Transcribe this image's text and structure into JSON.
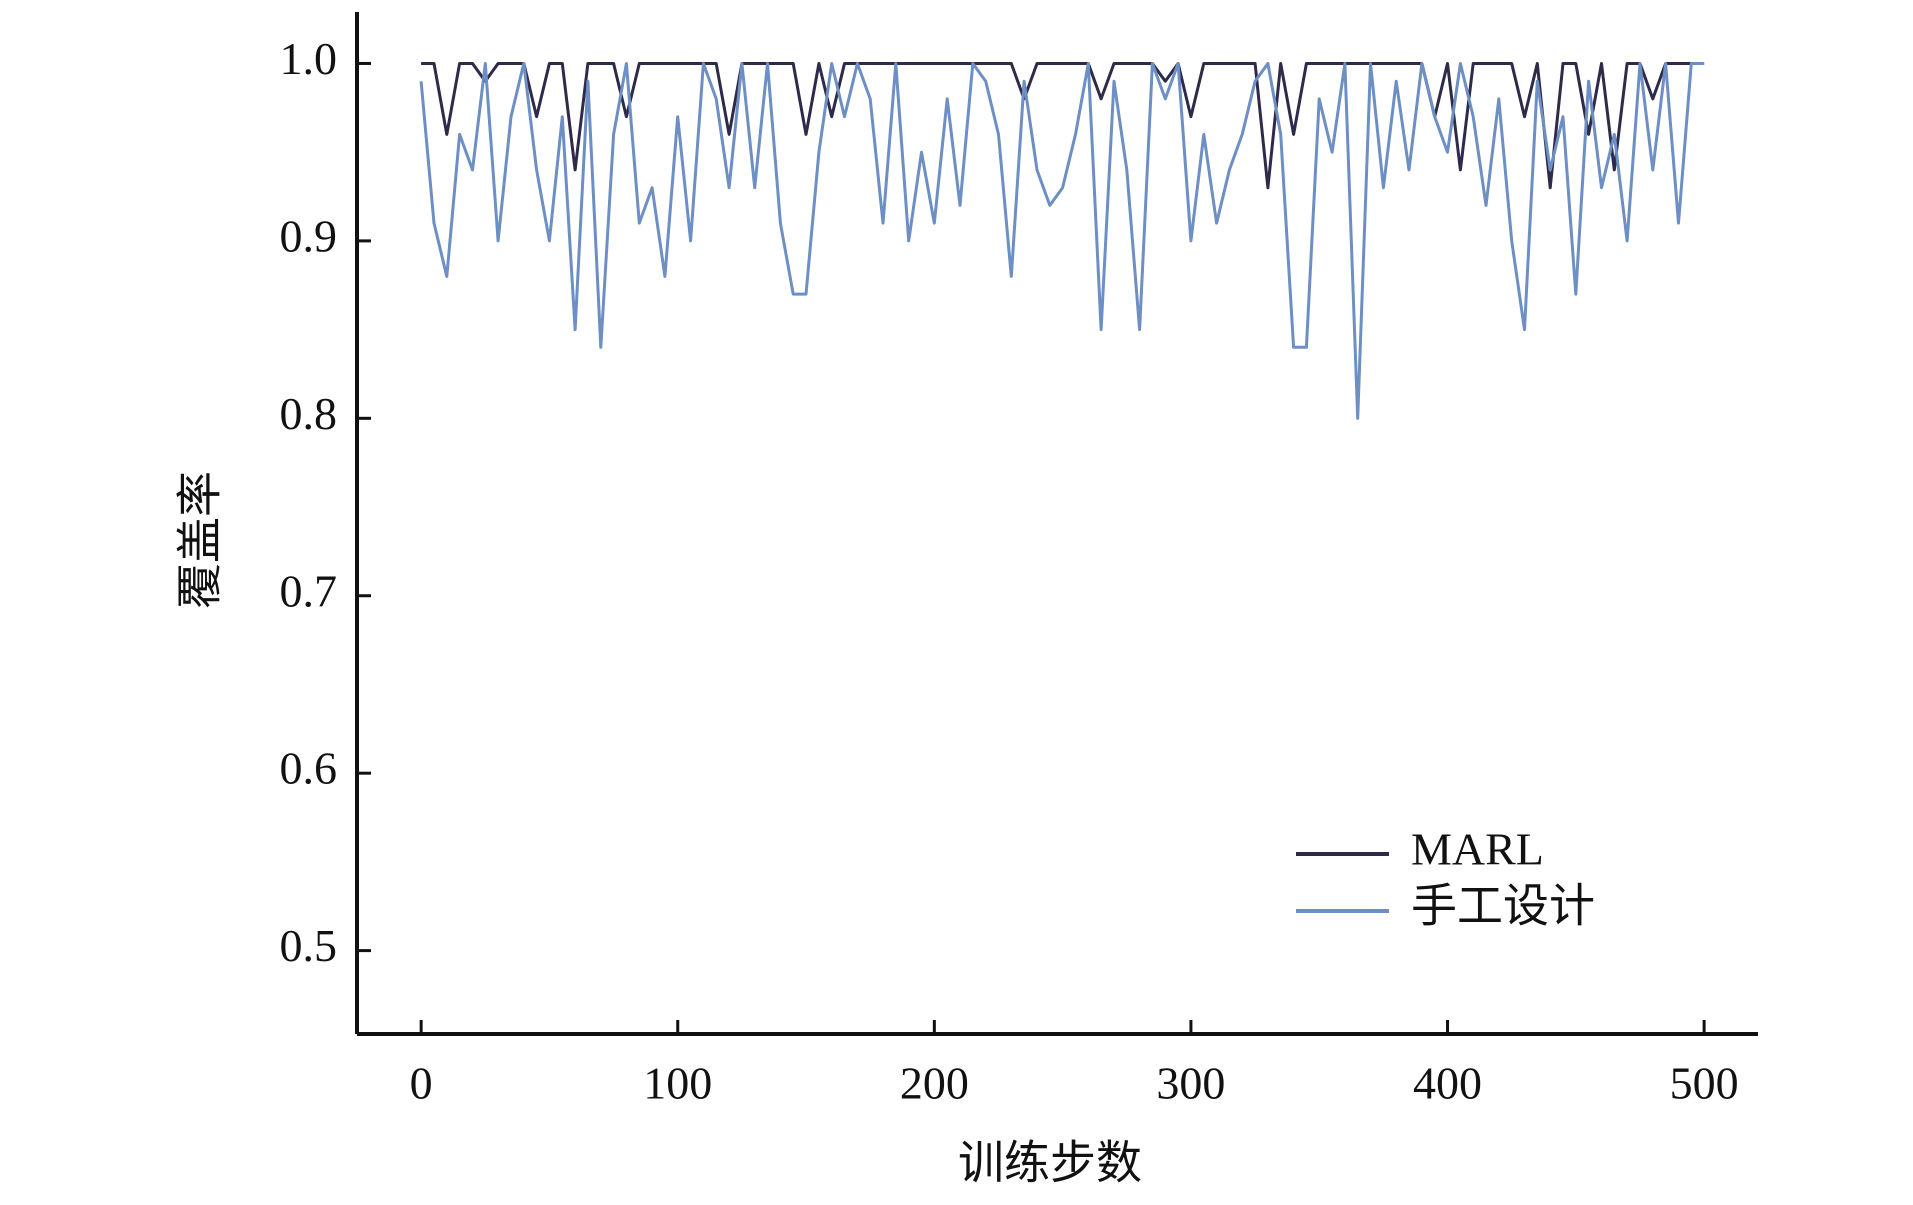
{
  "chart_data": {
    "type": "line",
    "x_label": "训练步数",
    "y_label": "覆盖率",
    "x": [
      0,
      5,
      10,
      15,
      20,
      25,
      30,
      35,
      40,
      45,
      50,
      55,
      60,
      65,
      70,
      75,
      80,
      85,
      90,
      95,
      100,
      105,
      110,
      115,
      120,
      125,
      130,
      135,
      140,
      145,
      150,
      155,
      160,
      165,
      170,
      175,
      180,
      185,
      190,
      195,
      200,
      205,
      210,
      215,
      220,
      225,
      230,
      235,
      240,
      245,
      250,
      255,
      260,
      265,
      270,
      275,
      280,
      285,
      290,
      295,
      300,
      305,
      310,
      315,
      320,
      325,
      330,
      335,
      340,
      345,
      350,
      355,
      360,
      365,
      370,
      375,
      380,
      385,
      390,
      395,
      400,
      405,
      410,
      415,
      420,
      425,
      430,
      435,
      440,
      445,
      450,
      455,
      460,
      465,
      470,
      475,
      480,
      485,
      490,
      495,
      500
    ],
    "series": [
      {
        "name": "MARL",
        "color": "#2e2a4a",
        "values": [
          1,
          1,
          0.96,
          1,
          1,
          0.99,
          1,
          1,
          1,
          0.97,
          1,
          1,
          0.94,
          1,
          1,
          1,
          0.97,
          1,
          1,
          1,
          1,
          1,
          1,
          1,
          0.96,
          1,
          1,
          1,
          1,
          1,
          0.96,
          1,
          0.97,
          1,
          1,
          1,
          1,
          1,
          1,
          1,
          1,
          1,
          1,
          1,
          1,
          1,
          1,
          0.98,
          1,
          1,
          1,
          1,
          1,
          0.98,
          1,
          1,
          1,
          1,
          0.99,
          1,
          0.97,
          1,
          1,
          1,
          1,
          1,
          0.93,
          1,
          0.96,
          1,
          1,
          1,
          1,
          1,
          1,
          1,
          1,
          1,
          1,
          0.97,
          1,
          0.94,
          1,
          1,
          1,
          1,
          0.97,
          1,
          0.93,
          1,
          1,
          0.96,
          1,
          0.94,
          1,
          1,
          0.98,
          1,
          1,
          1,
          1
        ]
      },
      {
        "name": "手工设计",
        "color": "#6d8fc4",
        "values": [
          0.99,
          0.91,
          0.88,
          0.96,
          0.94,
          1,
          0.9,
          0.97,
          1,
          0.94,
          0.9,
          0.97,
          0.85,
          0.99,
          0.84,
          0.96,
          1,
          0.91,
          0.93,
          0.88,
          0.97,
          0.9,
          1,
          0.98,
          0.93,
          1,
          0.93,
          1,
          0.91,
          0.87,
          0.87,
          0.95,
          1,
          0.97,
          1,
          0.98,
          0.91,
          1,
          0.9,
          0.95,
          0.91,
          0.98,
          0.92,
          1,
          0.99,
          0.96,
          0.88,
          0.99,
          0.94,
          0.92,
          0.93,
          0.96,
          1,
          0.85,
          0.99,
          0.94,
          0.85,
          1,
          0.98,
          1,
          0.9,
          0.96,
          0.91,
          0.94,
          0.96,
          0.99,
          1,
          0.96,
          0.84,
          0.84,
          0.98,
          0.95,
          1,
          0.8,
          1,
          0.93,
          0.99,
          0.94,
          1,
          0.97,
          0.95,
          1,
          0.97,
          0.92,
          0.98,
          0.9,
          0.85,
          0.99,
          0.94,
          0.97,
          0.87,
          0.99,
          0.93,
          0.96,
          0.9,
          1,
          0.94,
          1,
          0.91,
          1,
          1
        ]
      }
    ],
    "xlim": [
      -25,
      521
    ],
    "ylim": [
      0.453,
      1.029
    ],
    "xticks": [
      0,
      100,
      200,
      300,
      400,
      500
    ],
    "yticks": [
      0.5,
      0.6,
      0.7,
      0.8,
      0.9,
      {
        "value": 1,
        "label": "1.0"
      }
    ],
    "legend": "lower right",
    "grid": false
  }
}
